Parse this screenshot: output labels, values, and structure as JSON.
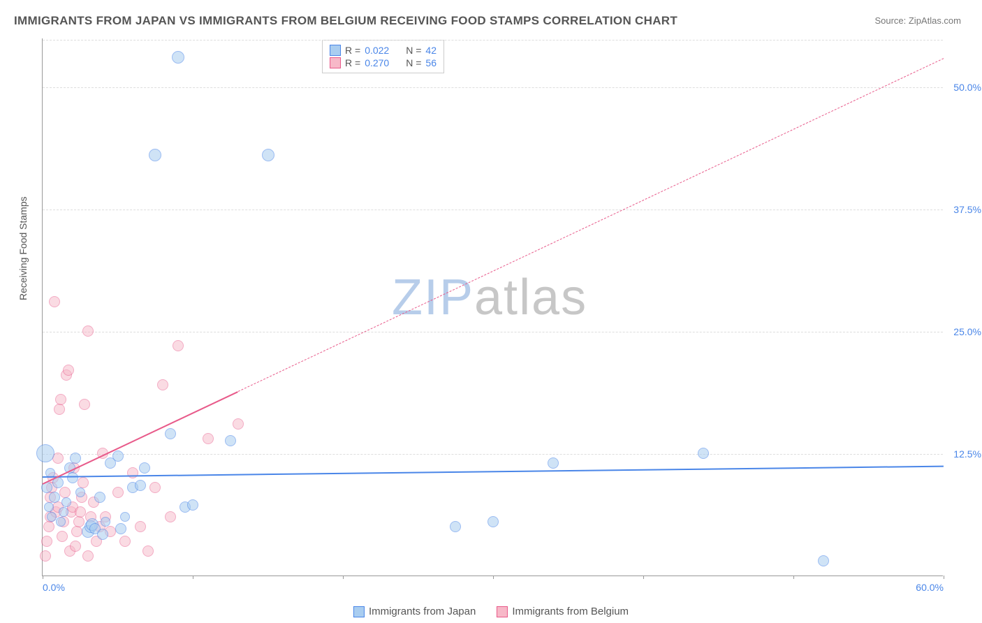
{
  "title": "IMMIGRANTS FROM JAPAN VS IMMIGRANTS FROM BELGIUM RECEIVING FOOD STAMPS CORRELATION CHART",
  "source_label": "Source: ",
  "source_name": "ZipAtlas.com",
  "ylabel": "Receiving Food Stamps",
  "watermark_part1": "ZIP",
  "watermark_part2": "atlas",
  "watermark_color1": "#b7cdea",
  "watermark_color2": "#c7c7c7",
  "chart": {
    "type": "scatter",
    "xlim": [
      0,
      60
    ],
    "ylim": [
      0,
      55
    ],
    "xticks": [
      0,
      10,
      20,
      30,
      40,
      50,
      60
    ],
    "xtick_labels": {
      "0": "0.0%",
      "60": "60.0%"
    },
    "yticks": [
      12.5,
      25,
      37.5,
      50
    ],
    "ytick_labels": [
      "12.5%",
      "25.0%",
      "37.5%",
      "50.0%"
    ],
    "grid_color": "#dddddd",
    "axis_color": "#999999",
    "background_color": "#ffffff",
    "tick_label_color": "#4a86e8",
    "series": [
      {
        "name": "Immigrants from Japan",
        "fill": "#a9cdf0",
        "stroke": "#4a86e8",
        "fill_opacity": 0.55,
        "r_value": "0.022",
        "n_value": "42",
        "trend": {
          "x0": 0,
          "y0": 10.2,
          "x1": 60,
          "y1": 11.3,
          "dash_from": 60
        },
        "points": [
          {
            "x": 0.2,
            "y": 12.5,
            "r": 13
          },
          {
            "x": 0.3,
            "y": 9.0,
            "r": 8
          },
          {
            "x": 0.4,
            "y": 7.0,
            "r": 7
          },
          {
            "x": 0.5,
            "y": 10.5,
            "r": 7
          },
          {
            "x": 0.6,
            "y": 6.0,
            "r": 7
          },
          {
            "x": 0.8,
            "y": 8.0,
            "r": 8
          },
          {
            "x": 1.0,
            "y": 9.5,
            "r": 8
          },
          {
            "x": 1.2,
            "y": 5.5,
            "r": 7
          },
          {
            "x": 1.4,
            "y": 6.5,
            "r": 7
          },
          {
            "x": 1.6,
            "y": 7.5,
            "r": 7
          },
          {
            "x": 1.8,
            "y": 11.0,
            "r": 8
          },
          {
            "x": 2.0,
            "y": 10.0,
            "r": 8
          },
          {
            "x": 2.2,
            "y": 12.0,
            "r": 8
          },
          {
            "x": 2.5,
            "y": 8.5,
            "r": 7
          },
          {
            "x": 3.0,
            "y": 4.5,
            "r": 9
          },
          {
            "x": 3.2,
            "y": 5.0,
            "r": 9
          },
          {
            "x": 3.3,
            "y": 5.2,
            "r": 9
          },
          {
            "x": 3.5,
            "y": 4.8,
            "r": 8
          },
          {
            "x": 3.8,
            "y": 8.0,
            "r": 8
          },
          {
            "x": 4.0,
            "y": 4.2,
            "r": 8
          },
          {
            "x": 4.2,
            "y": 5.5,
            "r": 7
          },
          {
            "x": 4.5,
            "y": 11.5,
            "r": 8
          },
          {
            "x": 5.0,
            "y": 12.2,
            "r": 8
          },
          {
            "x": 5.2,
            "y": 4.8,
            "r": 8
          },
          {
            "x": 5.5,
            "y": 6.0,
            "r": 7
          },
          {
            "x": 6.0,
            "y": 9.0,
            "r": 8
          },
          {
            "x": 6.5,
            "y": 9.2,
            "r": 8
          },
          {
            "x": 6.8,
            "y": 11.0,
            "r": 8
          },
          {
            "x": 7.5,
            "y": 43.0,
            "r": 9
          },
          {
            "x": 8.5,
            "y": 14.5,
            "r": 8
          },
          {
            "x": 9.0,
            "y": 53.0,
            "r": 9
          },
          {
            "x": 9.5,
            "y": 7.0,
            "r": 8
          },
          {
            "x": 10.0,
            "y": 7.2,
            "r": 8
          },
          {
            "x": 12.5,
            "y": 13.8,
            "r": 8
          },
          {
            "x": 15.0,
            "y": 43.0,
            "r": 9
          },
          {
            "x": 27.5,
            "y": 5.0,
            "r": 8
          },
          {
            "x": 30.0,
            "y": 5.5,
            "r": 8
          },
          {
            "x": 34.0,
            "y": 11.5,
            "r": 8
          },
          {
            "x": 44.0,
            "y": 12.5,
            "r": 8
          },
          {
            "x": 52.0,
            "y": 1.5,
            "r": 8
          }
        ]
      },
      {
        "name": "Immigrants from Belgium",
        "fill": "#f7b8c8",
        "stroke": "#e85a8a",
        "fill_opacity": 0.5,
        "r_value": "0.270",
        "n_value": "56",
        "trend": {
          "x0": 0,
          "y0": 9.5,
          "x1": 60,
          "y1": 53.0,
          "dash_from": 13
        },
        "points": [
          {
            "x": 0.2,
            "y": 2.0,
            "r": 8
          },
          {
            "x": 0.3,
            "y": 3.5,
            "r": 8
          },
          {
            "x": 0.4,
            "y": 5.0,
            "r": 8
          },
          {
            "x": 0.5,
            "y": 6.0,
            "r": 8
          },
          {
            "x": 0.5,
            "y": 8.0,
            "r": 8
          },
          {
            "x": 0.6,
            "y": 9.0,
            "r": 8
          },
          {
            "x": 0.7,
            "y": 10.0,
            "r": 8
          },
          {
            "x": 0.8,
            "y": 28.0,
            "r": 8
          },
          {
            "x": 0.9,
            "y": 6.5,
            "r": 8
          },
          {
            "x": 1.0,
            "y": 7.0,
            "r": 8
          },
          {
            "x": 1.0,
            "y": 12.0,
            "r": 8
          },
          {
            "x": 1.1,
            "y": 17.0,
            "r": 8
          },
          {
            "x": 1.2,
            "y": 18.0,
            "r": 8
          },
          {
            "x": 1.3,
            "y": 4.0,
            "r": 8
          },
          {
            "x": 1.4,
            "y": 5.5,
            "r": 8
          },
          {
            "x": 1.5,
            "y": 8.5,
            "r": 8
          },
          {
            "x": 1.6,
            "y": 20.5,
            "r": 8
          },
          {
            "x": 1.7,
            "y": 21.0,
            "r": 8
          },
          {
            "x": 1.8,
            "y": 2.5,
            "r": 8
          },
          {
            "x": 1.9,
            "y": 6.5,
            "r": 8
          },
          {
            "x": 2.0,
            "y": 7.0,
            "r": 8
          },
          {
            "x": 2.1,
            "y": 11.0,
            "r": 8
          },
          {
            "x": 2.2,
            "y": 3.0,
            "r": 8
          },
          {
            "x": 2.3,
            "y": 4.5,
            "r": 8
          },
          {
            "x": 2.4,
            "y": 5.5,
            "r": 8
          },
          {
            "x": 2.5,
            "y": 6.5,
            "r": 8
          },
          {
            "x": 2.6,
            "y": 8.0,
            "r": 8
          },
          {
            "x": 2.7,
            "y": 9.5,
            "r": 8
          },
          {
            "x": 2.8,
            "y": 17.5,
            "r": 8
          },
          {
            "x": 3.0,
            "y": 2.0,
            "r": 8
          },
          {
            "x": 3.0,
            "y": 25.0,
            "r": 8
          },
          {
            "x": 3.2,
            "y": 6.0,
            "r": 8
          },
          {
            "x": 3.4,
            "y": 7.5,
            "r": 8
          },
          {
            "x": 3.6,
            "y": 3.5,
            "r": 8
          },
          {
            "x": 3.8,
            "y": 5.0,
            "r": 8
          },
          {
            "x": 4.0,
            "y": 12.5,
            "r": 8
          },
          {
            "x": 4.2,
            "y": 6.0,
            "r": 8
          },
          {
            "x": 4.5,
            "y": 4.5,
            "r": 8
          },
          {
            "x": 5.0,
            "y": 8.5,
            "r": 8
          },
          {
            "x": 5.5,
            "y": 3.5,
            "r": 8
          },
          {
            "x": 6.0,
            "y": 10.5,
            "r": 8
          },
          {
            "x": 6.5,
            "y": 5.0,
            "r": 8
          },
          {
            "x": 7.0,
            "y": 2.5,
            "r": 8
          },
          {
            "x": 7.5,
            "y": 9.0,
            "r": 8
          },
          {
            "x": 8.0,
            "y": 19.5,
            "r": 8
          },
          {
            "x": 8.5,
            "y": 6.0,
            "r": 8
          },
          {
            "x": 9.0,
            "y": 23.5,
            "r": 8
          },
          {
            "x": 11.0,
            "y": 14.0,
            "r": 8
          },
          {
            "x": 13.0,
            "y": 15.5,
            "r": 8
          }
        ]
      }
    ]
  },
  "legend_top": {
    "r_label": "R =",
    "n_label": "N ="
  }
}
